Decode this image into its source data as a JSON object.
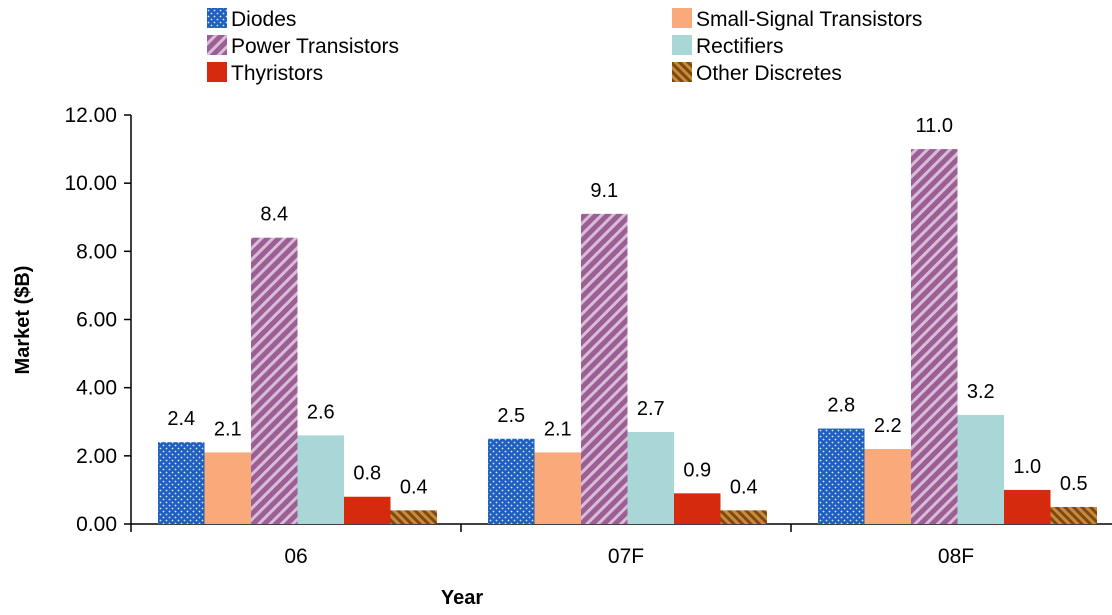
{
  "chart_data": {
    "type": "bar",
    "categories": [
      "06",
      "07F",
      "08F"
    ],
    "series": [
      {
        "name": "Diodes",
        "values": [
          2.4,
          2.5,
          2.8
        ],
        "labels": [
          "2.4",
          "2.5",
          "2.8"
        ],
        "color": "#1f5fbf",
        "pattern": "dots"
      },
      {
        "name": "Small-Signal Transistors",
        "values": [
          2.1,
          2.1,
          2.2
        ],
        "labels": [
          "2.1",
          "2.1",
          "2.2"
        ],
        "color": "#f9a97a",
        "pattern": "solid"
      },
      {
        "name": "Power Transistors",
        "values": [
          8.4,
          9.1,
          11.0
        ],
        "labels": [
          "8.4",
          "9.1",
          "11.0"
        ],
        "color": "#9b5f96",
        "pattern": "diagonal-stripes"
      },
      {
        "name": "Rectifiers",
        "values": [
          2.6,
          2.7,
          3.2
        ],
        "labels": [
          "2.6",
          "2.7",
          "3.2"
        ],
        "color": "#a9d6d6",
        "pattern": "solid"
      },
      {
        "name": "Thyristors",
        "values": [
          0.8,
          0.9,
          1.0
        ],
        "labels": [
          "0.8",
          "0.9",
          "1.0"
        ],
        "color": "#d52a0e",
        "pattern": "solid"
      },
      {
        "name": "Other Discretes",
        "values": [
          0.4,
          0.4,
          0.5
        ],
        "labels": [
          "0.4",
          "0.4",
          "0.5"
        ],
        "color": "#a86a1e",
        "pattern": "diagonal-hatch"
      }
    ],
    "xlabel": "Year",
    "ylabel": "Market ($B)",
    "ylim": [
      0,
      12
    ],
    "yticks": [
      "0.00",
      "2.00",
      "4.00",
      "6.00",
      "8.00",
      "10.00",
      "12.00"
    ],
    "grid": false,
    "legend_position": "top"
  }
}
